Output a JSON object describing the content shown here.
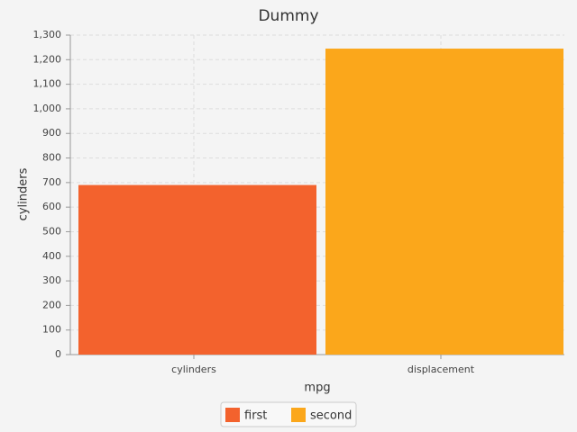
{
  "chart_data": {
    "type": "bar",
    "title": "Dummy",
    "x_label": "mpg",
    "y_label": "cylinders",
    "categories": [
      "cylinders",
      "displacement"
    ],
    "series": [
      {
        "name": "first",
        "color": "#f3622d",
        "values": [
          690,
          null
        ]
      },
      {
        "name": "second",
        "color": "#fba71b",
        "values": [
          null,
          1245
        ]
      }
    ],
    "ylim": [
      0,
      1300
    ],
    "yticks": [
      0,
      100,
      200,
      300,
      400,
      500,
      600,
      700,
      800,
      900,
      {
        "value": 1000,
        "label": "1,000"
      },
      {
        "value": 1100,
        "label": "1,100"
      },
      {
        "value": 1200,
        "label": "1,200"
      },
      {
        "value": 1300,
        "label": "1,300"
      }
    ],
    "grid": true,
    "legend": "bottom"
  }
}
